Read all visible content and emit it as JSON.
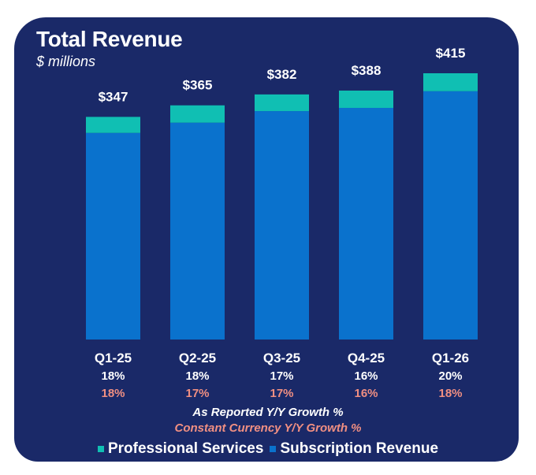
{
  "colors": {
    "panel": "#1a2968",
    "subscription": "#0a72cd",
    "professional_services": "#10bfb3",
    "reported_text": "#ffffff",
    "constant_currency_text": "#f08f82"
  },
  "chart_data": {
    "type": "bar",
    "stacked": true,
    "title": "Total Revenue",
    "subtitle": "$ millions",
    "xlabel": "",
    "ylabel": "",
    "ylim": [
      0,
      420
    ],
    "grid": false,
    "categories": [
      "Q1-25",
      "Q2-25",
      "Q3-25",
      "Q4-25",
      "Q1-26"
    ],
    "series": [
      {
        "name": "Subscription Revenue",
        "values": [
          322,
          338,
          356,
          361,
          387
        ]
      },
      {
        "name": "Professional Services",
        "values": [
          25,
          27,
          26,
          27,
          28
        ]
      }
    ],
    "totals": [
      347,
      365,
      382,
      388,
      415
    ],
    "total_labels": [
      "$347",
      "$365",
      "$382",
      "$388",
      "$415"
    ],
    "as_reported_growth": [
      "18%",
      "18%",
      "17%",
      "16%",
      "20%"
    ],
    "constant_currency_growth": [
      "18%",
      "17%",
      "17%",
      "16%",
      "18%"
    ],
    "annotations": {
      "as_reported": "As Reported Y/Y Growth %",
      "constant_currency": "Constant Currency Y/Y Growth %"
    },
    "legend": {
      "placement": "bottom",
      "entries": [
        "Professional Services",
        "Subscription Revenue"
      ]
    }
  }
}
